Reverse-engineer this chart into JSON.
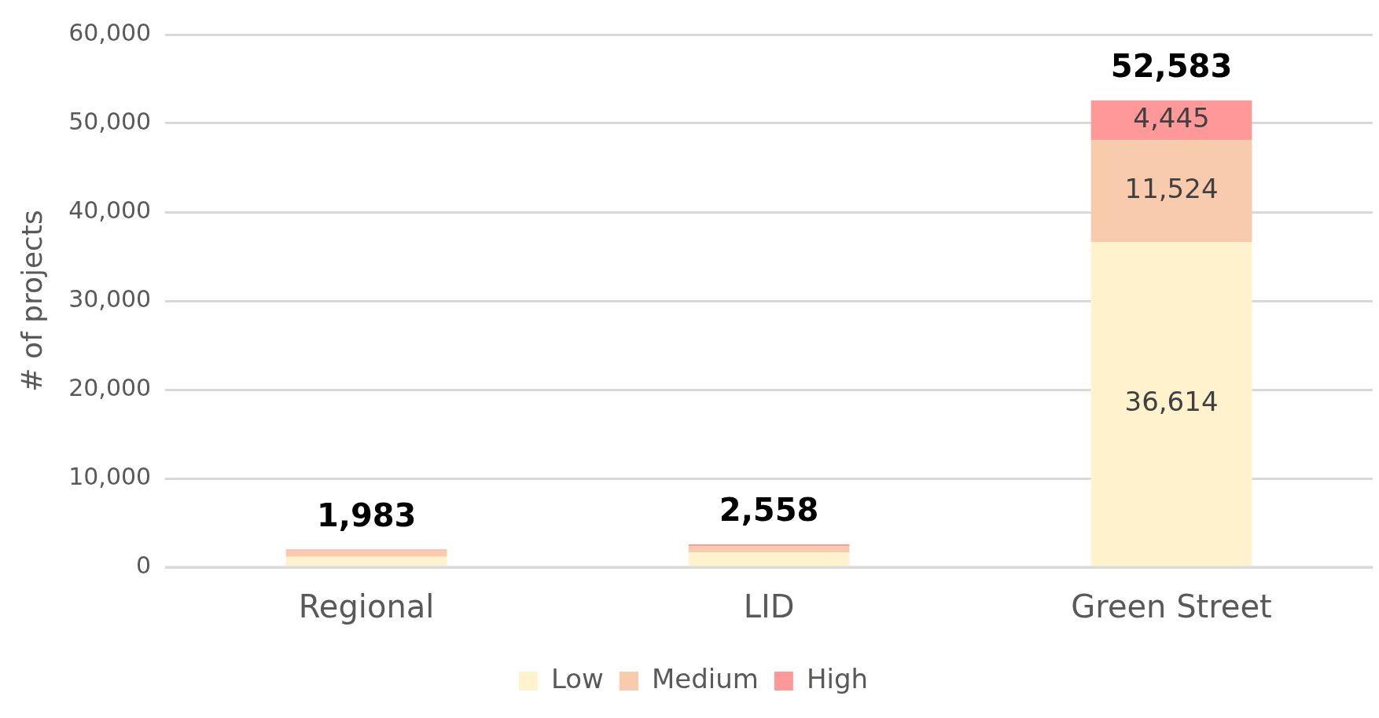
{
  "chart_data": {
    "type": "bar",
    "stacked": true,
    "ylabel": "# of projects",
    "categories": [
      "Regional",
      "LID",
      "Green Street"
    ],
    "series": [
      {
        "name": "Low",
        "color": "#fff2cc",
        "values": [
          1183,
          1658,
          36614
        ],
        "value_labels": [
          null,
          null,
          "36,614"
        ]
      },
      {
        "name": "Medium",
        "color": "#f8cbad",
        "values": [
          700,
          700,
          11524
        ],
        "value_labels": [
          null,
          null,
          "11,524"
        ]
      },
      {
        "name": "High",
        "color": "#ff9999",
        "values": [
          100,
          200,
          4445
        ],
        "value_labels": [
          null,
          null,
          "4,445"
        ]
      }
    ],
    "totals": [
      "1,983",
      "2,558",
      "52,583"
    ],
    "ylim": [
      0,
      60000
    ],
    "yticks": [
      {
        "value": 0,
        "label": "0"
      },
      {
        "value": 10000,
        "label": "10,000"
      },
      {
        "value": 20000,
        "label": "20,000"
      },
      {
        "value": 30000,
        "label": "30,000"
      },
      {
        "value": 40000,
        "label": "40,000"
      },
      {
        "value": 50000,
        "label": "50,000"
      },
      {
        "value": 60000,
        "label": "60,000"
      }
    ],
    "grid": "y",
    "legend": "bottom"
  }
}
